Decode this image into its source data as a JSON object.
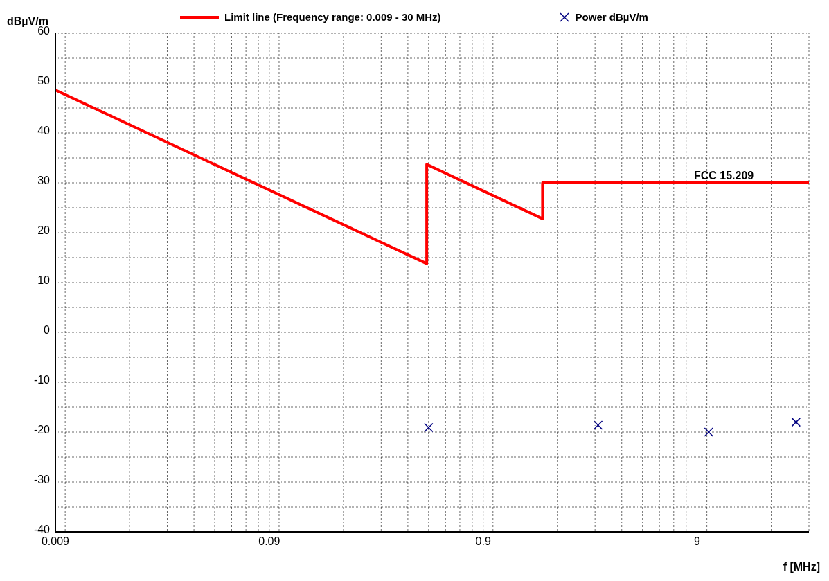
{
  "chart_data": {
    "type": "line",
    "ylabel": "dBµV/m",
    "xlabel": "f [MHz]",
    "log": "x",
    "grid": true,
    "legend": "top",
    "xlim": [
      0.009,
      30
    ],
    "xticks": [
      0.009,
      {
        "value": 0.01,
        "label": null
      },
      {
        "value": 0.02,
        "label": null
      },
      {
        "value": 0.03,
        "label": null
      },
      {
        "value": 0.04,
        "label": null
      },
      {
        "value": 0.05,
        "label": null
      },
      {
        "value": 0.06,
        "label": null
      },
      {
        "value": 0.07,
        "label": null
      },
      {
        "value": 0.08,
        "label": null
      },
      0.09,
      {
        "value": 0.1,
        "label": null
      },
      {
        "value": 0.2,
        "label": null
      },
      {
        "value": 0.3,
        "label": null
      },
      {
        "value": 0.4,
        "label": null
      },
      {
        "value": 0.5,
        "label": null
      },
      {
        "value": 0.6,
        "label": null
      },
      {
        "value": 0.7,
        "label": null
      },
      {
        "value": 0.8,
        "label": null
      },
      0.9,
      {
        "value": 1,
        "label": null
      },
      {
        "value": 2,
        "label": null
      },
      {
        "value": 3,
        "label": null
      },
      {
        "value": 4,
        "label": null
      },
      {
        "value": 5,
        "label": null
      },
      {
        "value": 6,
        "label": null
      },
      {
        "value": 7,
        "label": null
      },
      {
        "value": 8,
        "label": null
      },
      9,
      {
        "value": 10,
        "label": null
      },
      {
        "value": 20,
        "label": null
      },
      {
        "value": 30,
        "label": null
      }
    ],
    "ylim": [
      -40,
      60
    ],
    "yticks": [
      -40,
      {
        "value": -35,
        "label": null
      },
      -30,
      {
        "value": -25,
        "label": null
      },
      -20,
      {
        "value": -15,
        "label": null
      },
      -10,
      {
        "value": -5,
        "label": null
      },
      0,
      {
        "value": 5,
        "label": null
      },
      10,
      {
        "value": 15,
        "label": null
      },
      20,
      {
        "value": 25,
        "label": null
      },
      30,
      {
        "value": 35,
        "label": null
      },
      40,
      {
        "value": 45,
        "label": null
      },
      50,
      {
        "value": 55,
        "label": null
      },
      60
    ],
    "series": [
      {
        "name": "Limit line (Frequency range: 0.009 - 30 MHz)",
        "color": "#ff0000",
        "marker": "none",
        "line_style": "solid",
        "x": [
          0.009,
          0.49,
          0.49,
          1.705,
          1.705,
          30
        ],
        "values": [
          48.6,
          13.8,
          33.7,
          22.8,
          30,
          30
        ]
      },
      {
        "name": "Power dBµV/m",
        "type": "scatter",
        "color": "#000080",
        "marker": "cross",
        "x": [
          0.5,
          3.1,
          10.2,
          26.1
        ],
        "values": [
          -19.1,
          -18.6,
          -20,
          -18
        ]
      }
    ],
    "annotations": [
      {
        "text": "FCC 15.209",
        "x": 12,
        "y": 30
      }
    ]
  }
}
